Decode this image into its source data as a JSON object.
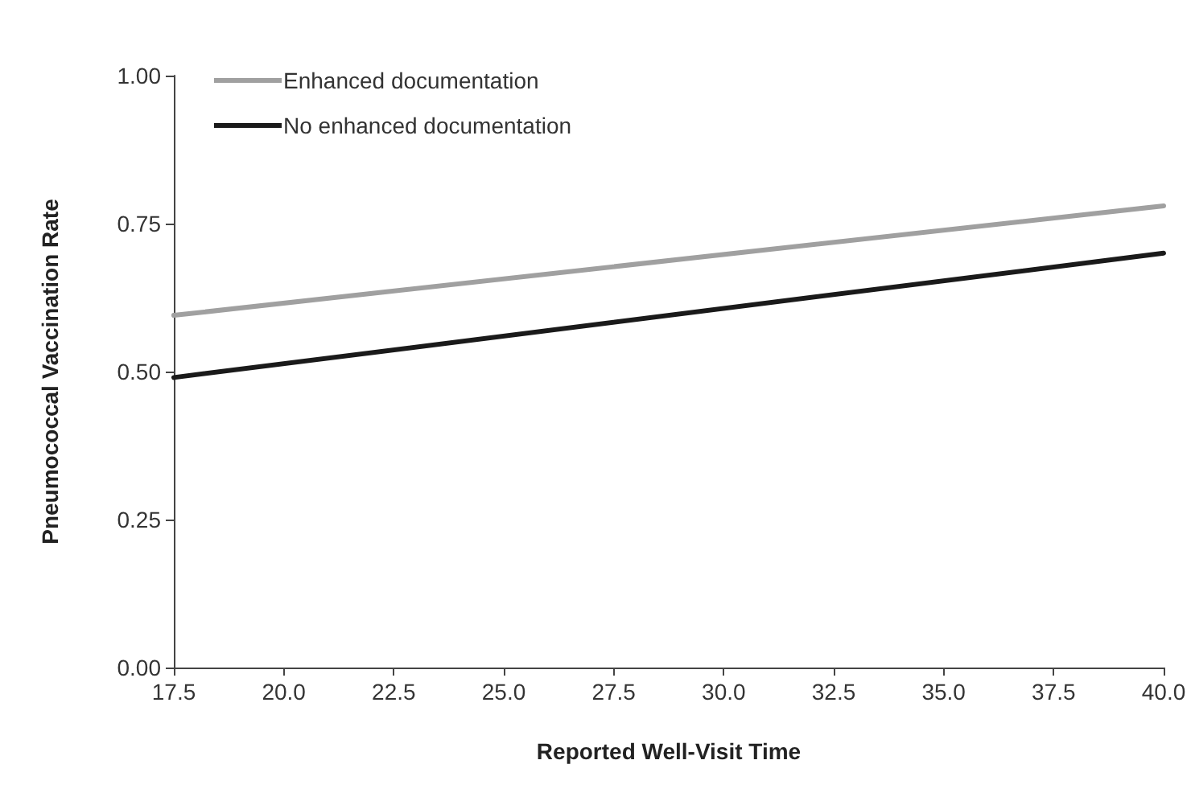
{
  "chart_data": {
    "type": "line",
    "xlabel": "Reported Well-Visit Time",
    "ylabel": "Pneumococcal Vaccination Rate",
    "x": [
      17.5,
      40.0
    ],
    "series": [
      {
        "name": "Enhanced documentation",
        "color": "#a0a0a0",
        "values": [
          0.595,
          0.78
        ]
      },
      {
        "name": "No enhanced documentation",
        "color": "#1a1a1a",
        "values": [
          0.49,
          0.7
        ]
      }
    ],
    "xlim": [
      17.5,
      40.0
    ],
    "xticks": [
      {
        "value": 17.5,
        "label": "17.5"
      },
      {
        "value": 20,
        "label": "20.0"
      },
      {
        "value": 22.5,
        "label": "22.5"
      },
      {
        "value": 25,
        "label": "25.0"
      },
      {
        "value": 27.5,
        "label": "27.5"
      },
      {
        "value": 30,
        "label": "30.0"
      },
      {
        "value": 32.5,
        "label": "32.5"
      },
      {
        "value": 35,
        "label": "35.0"
      },
      {
        "value": 37.5,
        "label": "37.5"
      },
      {
        "value": 40,
        "label": "40.0"
      }
    ],
    "ylim": [
      0,
      1
    ],
    "yticks": [
      {
        "value": 0,
        "label": "0.00"
      },
      {
        "value": 0.25,
        "label": "0.25"
      },
      {
        "value": 0.5,
        "label": "0.50"
      },
      {
        "value": 0.75,
        "label": "0.75"
      },
      {
        "value": 1,
        "label": "1.00"
      }
    ],
    "grid": false,
    "legend": "top left",
    "marker": "none",
    "line_style": "solid"
  }
}
